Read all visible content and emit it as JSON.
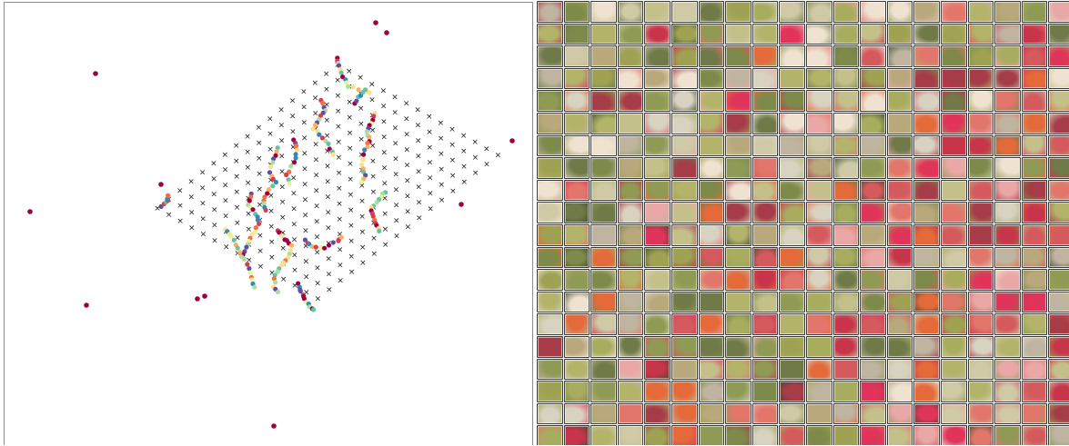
{
  "scatter": {
    "grid": {
      "rows": 17,
      "cols": 15,
      "marker": "×",
      "marker_color": "#1a1a1a"
    },
    "palette": [
      "#9e0142",
      "#d53e4f",
      "#f46d43",
      "#fdae61",
      "#fee08b",
      "#e6f598",
      "#abdda4",
      "#66c2a5",
      "#3288bd",
      "#5e4fa2"
    ],
    "outlier_color": "#9e0142"
  },
  "mosaic": {
    "rows": 20,
    "cols": 20,
    "tile_palette": [
      "#a8ac5e",
      "#b3b46a",
      "#9ea252",
      "#c4c08a",
      "#cfc9a6",
      "#8f9a55",
      "#b9a87c",
      "#d8d2c0",
      "#a63c48",
      "#c8344a",
      "#e0345a",
      "#d45a5e",
      "#e2766a",
      "#e9a8a6",
      "#e46a3a",
      "#7d8a4a",
      "#bfb4a0",
      "#6f7a48",
      "#f0e2d0",
      "#3e4a2c"
    ]
  }
}
